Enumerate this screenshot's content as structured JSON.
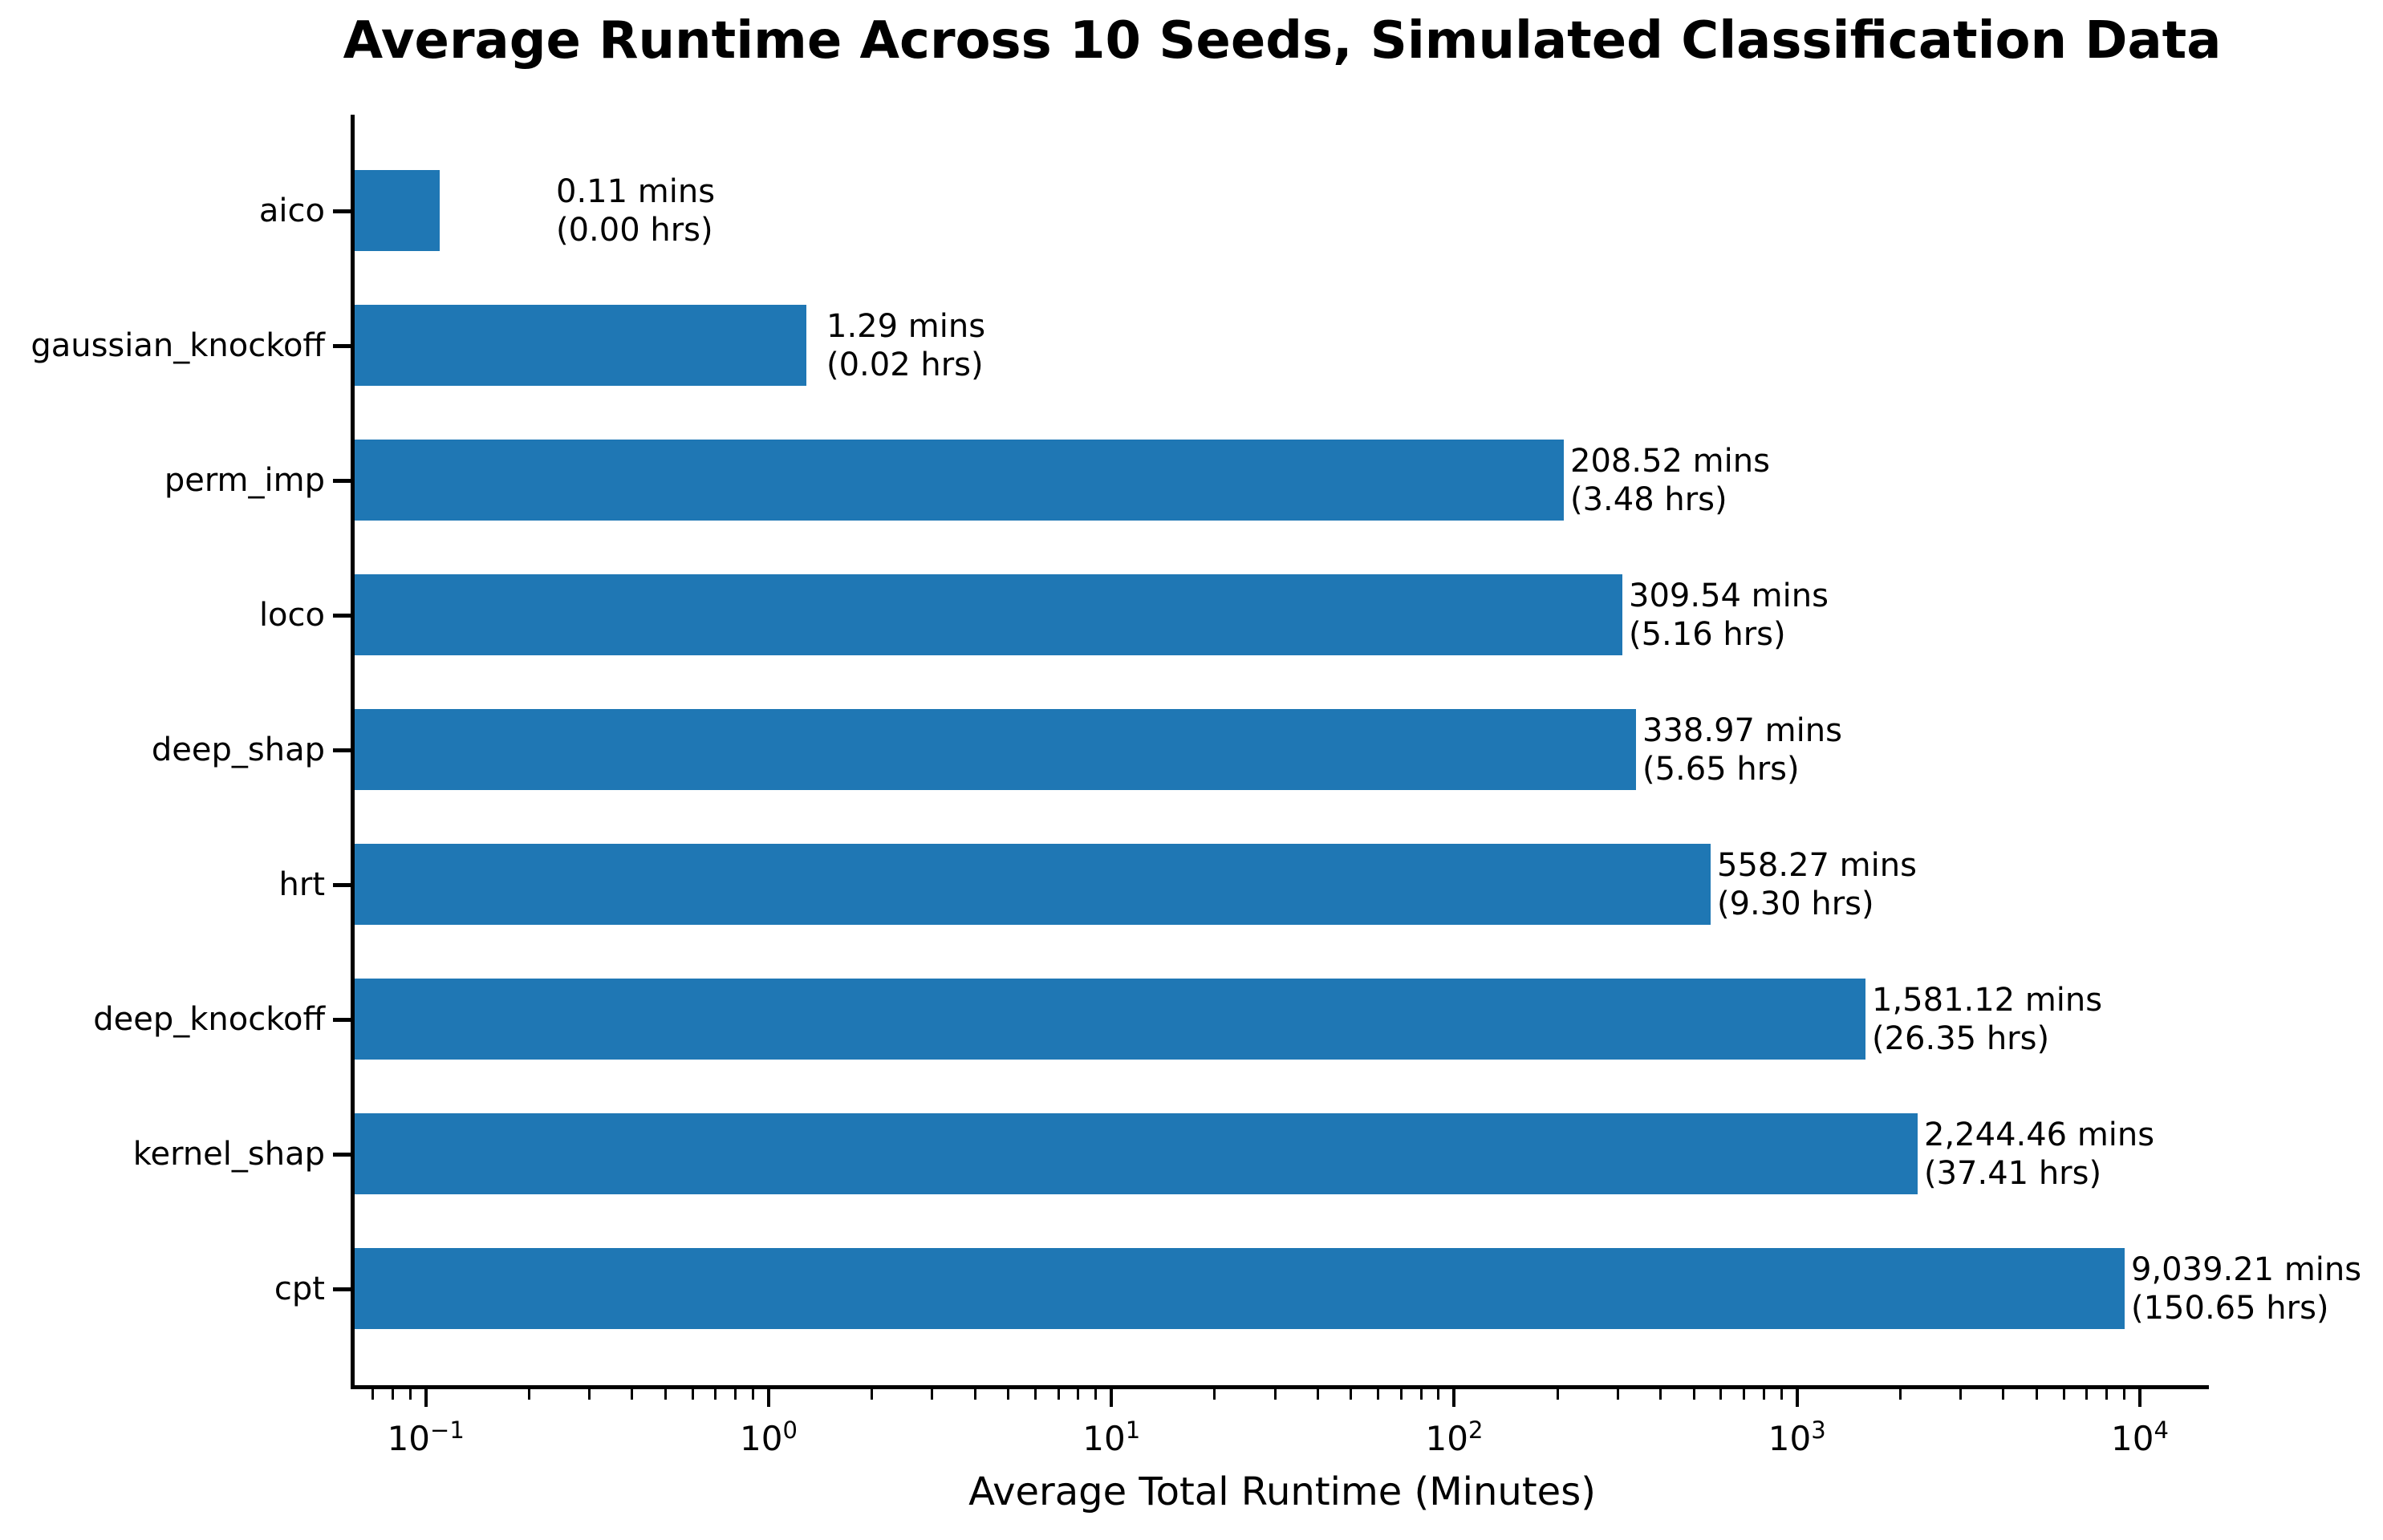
{
  "figure": {
    "background": "#ffffff"
  },
  "chart_data": {
    "type": "bar",
    "orientation": "horizontal",
    "title": "Average Runtime Across 10 Seeds, Simulated Classification Data",
    "xlabel": "Average Total Runtime (Minutes)",
    "ylabel": "",
    "x_scale": "log",
    "xlim": [
      0.062,
      15900
    ],
    "grid": false,
    "legend": null,
    "bar_color": "#1f77b4",
    "text_color": "#000000",
    "categories": [
      "aico",
      "gaussian_knockoff",
      "perm_imp",
      "loco",
      "deep_shap",
      "hrt",
      "deep_knockoff",
      "kernel_shap",
      "cpt"
    ],
    "values_mins": [
      0.11,
      1.29,
      208.52,
      309.54,
      338.97,
      558.27,
      1581.12,
      2244.46,
      9039.21
    ],
    "values_hrs": [
      0.0,
      0.02,
      3.48,
      5.16,
      5.65,
      9.3,
      26.35,
      37.41,
      150.65
    ],
    "x_ticks": [
      {
        "base": "10",
        "exp": "−1",
        "value": 0.1
      },
      {
        "base": "10",
        "exp": "0",
        "value": 1
      },
      {
        "base": "10",
        "exp": "1",
        "value": 10
      },
      {
        "base": "10",
        "exp": "2",
        "value": 100
      },
      {
        "base": "10",
        "exp": "3",
        "value": 1000
      },
      {
        "base": "10",
        "exp": "4",
        "value": 10000
      }
    ],
    "bars": [
      {
        "category": "aico",
        "value_mins": 0.11,
        "value_hrs": 0.0,
        "label_line1": "0.11 mins",
        "label_line2": "(0.00 hrs)"
      },
      {
        "category": "gaussian_knockoff",
        "value_mins": 1.29,
        "value_hrs": 0.02,
        "label_line1": "1.29 mins",
        "label_line2": "(0.02 hrs)"
      },
      {
        "category": "perm_imp",
        "value_mins": 208.52,
        "value_hrs": 3.48,
        "label_line1": "208.52 mins",
        "label_line2": "(3.48 hrs)"
      },
      {
        "category": "loco",
        "value_mins": 309.54,
        "value_hrs": 5.16,
        "label_line1": "309.54 mins",
        "label_line2": "(5.16 hrs)"
      },
      {
        "category": "deep_shap",
        "value_mins": 338.97,
        "value_hrs": 5.65,
        "label_line1": "338.97 mins",
        "label_line2": "(5.65 hrs)"
      },
      {
        "category": "hrt",
        "value_mins": 558.27,
        "value_hrs": 9.3,
        "label_line1": "558.27 mins",
        "label_line2": "(9.30 hrs)"
      },
      {
        "category": "deep_knockoff",
        "value_mins": 1581.12,
        "value_hrs": 26.35,
        "label_line1": "1,581.12 mins",
        "label_line2": "(26.35 hrs)"
      },
      {
        "category": "kernel_shap",
        "value_mins": 2244.46,
        "value_hrs": 37.41,
        "label_line1": "2,244.46 mins",
        "label_line2": "(37.41 hrs)"
      },
      {
        "category": "cpt",
        "value_mins": 9039.21,
        "value_hrs": 150.65,
        "label_line1": "9,039.21 mins",
        "label_line2": "(150.65 hrs)"
      }
    ]
  }
}
